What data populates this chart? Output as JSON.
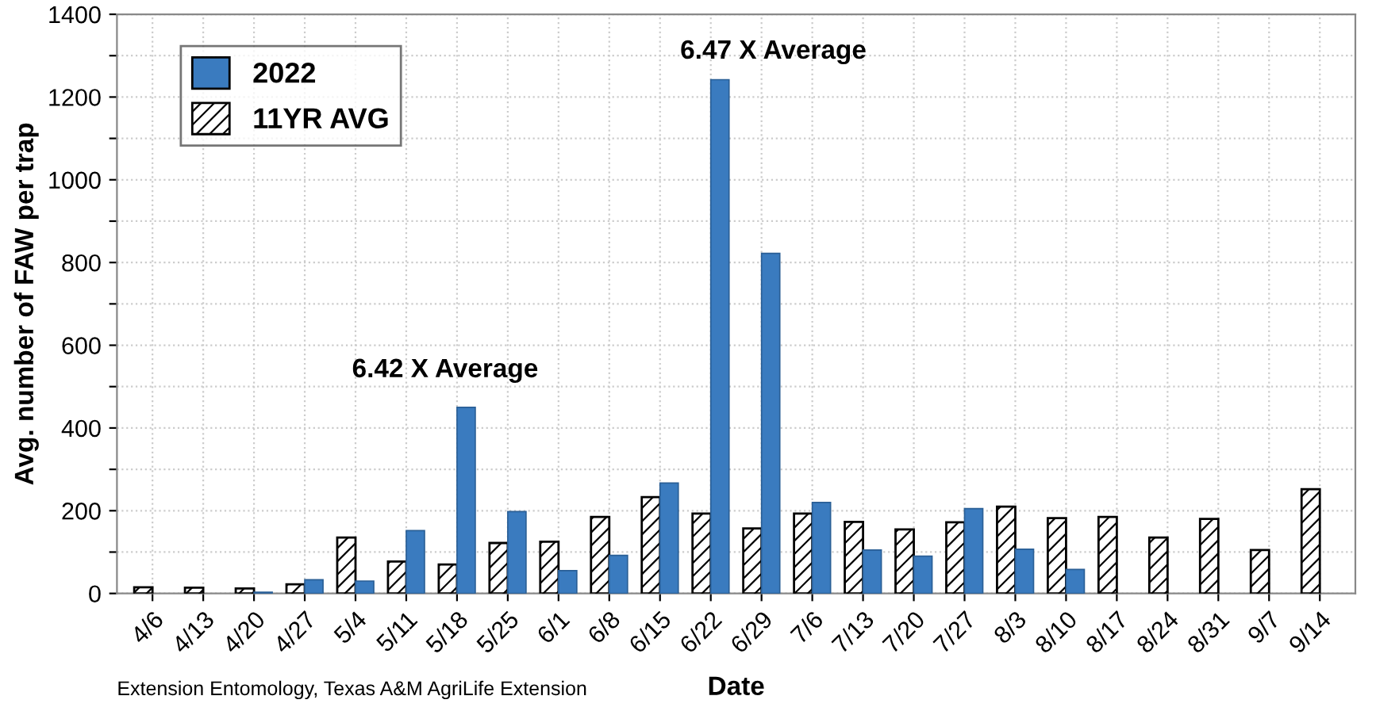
{
  "chart_data": {
    "type": "bar",
    "categories": [
      "4/6",
      "4/13",
      "4/20",
      "4/27",
      "5/4",
      "5/11",
      "5/18",
      "5/25",
      "6/1",
      "6/8",
      "6/15",
      "6/22",
      "6/29",
      "7/6",
      "7/13",
      "7/20",
      "7/27",
      "8/3",
      "8/10",
      "8/17",
      "8/24",
      "8/31",
      "9/7",
      "9/14"
    ],
    "series": [
      {
        "name": "11YR AVG",
        "color": "#000000",
        "values": [
          15,
          14,
          12,
          22,
          135,
          77,
          70,
          122,
          125,
          185,
          233,
          193,
          157,
          193,
          173,
          155,
          172,
          210,
          182,
          185,
          135,
          180,
          105,
          252
        ]
      },
      {
        "name": "2022",
        "color": "#3a7bbf",
        "values": [
          null,
          null,
          3,
          33,
          30,
          152,
          450,
          198,
          55,
          92,
          267,
          1242,
          822,
          220,
          105,
          90,
          205,
          107,
          58,
          null,
          null,
          null,
          null,
          null
        ]
      }
    ],
    "xlabel": "Date",
    "ylabel": "Avg. number of FAW per trap",
    "ylim": [
      0,
      1400
    ],
    "yticks": [
      0,
      {
        "value": 100,
        "label": null
      },
      200,
      {
        "value": 300,
        "label": null
      },
      400,
      {
        "value": 500,
        "label": null
      },
      600,
      {
        "value": 700,
        "label": null
      },
      800,
      {
        "value": 900,
        "label": null
      },
      1000,
      {
        "value": 1100,
        "label": null
      },
      1200,
      {
        "value": 1300,
        "label": null
      },
      1400
    ],
    "grid": true,
    "legend": "top left",
    "annotations": [
      "6.42 X Average",
      "6.47 X Average",
      "Extension Entomology, Texas A&M AgriLife Extension"
    ]
  }
}
